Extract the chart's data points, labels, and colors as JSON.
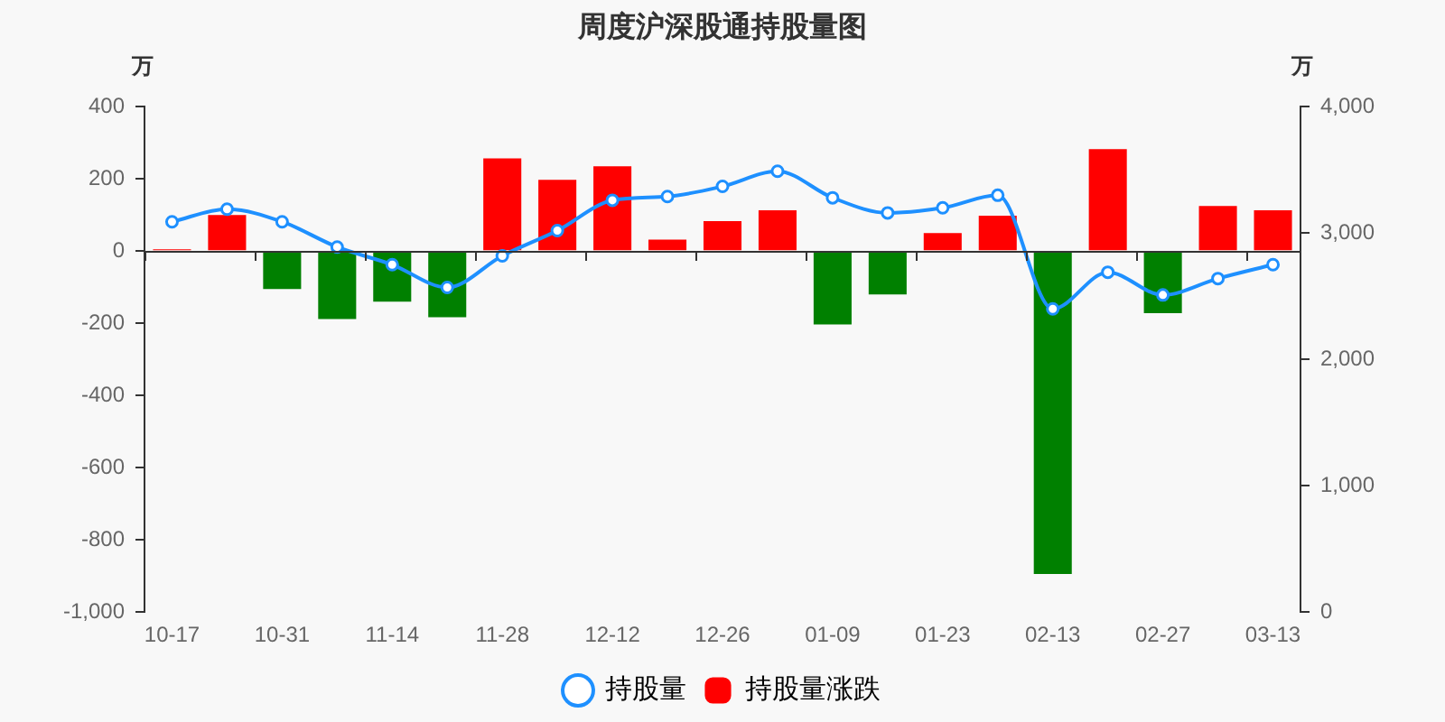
{
  "chart_data": {
    "type": "bar",
    "title": "周度沪深股通持股量图",
    "ylabel": "万",
    "y2label": "万",
    "categories": [
      "10-17",
      null,
      "10-31",
      null,
      "11-14",
      null,
      "11-28",
      null,
      "12-12",
      null,
      "12-26",
      null,
      "01-09",
      null,
      "01-23",
      null,
      "02-13",
      null,
      "02-27",
      null,
      "03-13"
    ],
    "series": [
      {
        "name": "持股量",
        "type": "line",
        "axis": "y2",
        "color": "#1e90ff",
        "values": [
          3090,
          3190,
          3090,
          2890,
          2750,
          2570,
          2820,
          3020,
          3260,
          3290,
          3370,
          3490,
          3280,
          3160,
          3200,
          3300,
          2400,
          2690,
          2510,
          2640,
          2750
        ]
      },
      {
        "name": "持股量涨跌",
        "type": "bar",
        "color": "#ff0000",
        "colors": [
          "#ff0000",
          "#ff0000",
          "#008000",
          "#008000",
          "#008000",
          "#008000",
          "#ff0000",
          "#ff0000",
          "#ff0000",
          "#ff0000",
          "#ff0000",
          "#ff0000",
          "#008000",
          "#008000",
          "#ff0000",
          "#ff0000",
          "#008000",
          "#ff0000",
          "#008000",
          "#ff0000",
          "#ff0000"
        ],
        "values": [
          5,
          100,
          -105,
          -188,
          -140,
          -183,
          257,
          198,
          235,
          32,
          83,
          113,
          -203,
          -120,
          50,
          98,
          -895,
          283,
          -172,
          125,
          113
        ]
      }
    ],
    "ylim": [
      -1000,
      400
    ],
    "yticks": [
      {
        "value": -1000,
        "label": "-1,000"
      },
      -800,
      -600,
      -400,
      -200,
      0,
      200,
      400
    ],
    "y2lim": [
      0,
      4000
    ],
    "y2ticks": [
      0,
      {
        "value": 1000,
        "label": "1,000"
      },
      {
        "value": 2000,
        "label": "2,000"
      },
      {
        "value": 3000,
        "label": "3,000"
      },
      {
        "value": 4000,
        "label": "4,000"
      }
    ],
    "legend": "bottom",
    "marker": "circle"
  }
}
